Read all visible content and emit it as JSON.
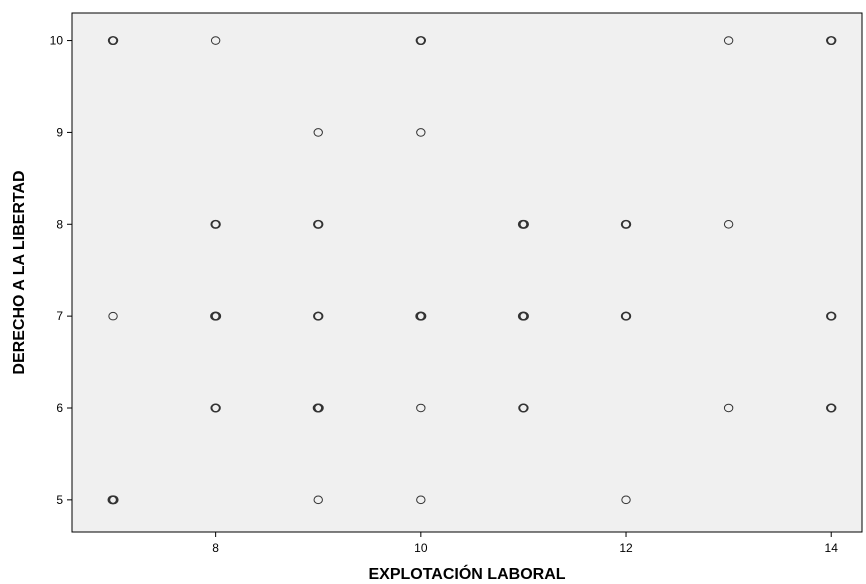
{
  "chart_data": {
    "type": "scatter",
    "title": "",
    "xlabel": "EXPLOTACIÓN LABORAL",
    "ylabel": "DERECHO A LA LIBERTAD",
    "xlim": [
      6.6,
      14.3
    ],
    "ylim": [
      4.65,
      10.3
    ],
    "xticks": [
      8,
      10,
      12,
      14
    ],
    "yticks": [
      5,
      6,
      7,
      8,
      9,
      10
    ],
    "grid": false,
    "legend": "none",
    "colors": {
      "plot_background": "#f0f0f0",
      "marker_stroke": "#333333"
    },
    "points": [
      {
        "x": 7,
        "y": 10,
        "count": 2
      },
      {
        "x": 8,
        "y": 10,
        "count": 1
      },
      {
        "x": 10,
        "y": 10,
        "count": 2
      },
      {
        "x": 13,
        "y": 10,
        "count": 1
      },
      {
        "x": 14,
        "y": 10,
        "count": 2
      },
      {
        "x": 9,
        "y": 9,
        "count": 1
      },
      {
        "x": 10,
        "y": 9,
        "count": 1
      },
      {
        "x": 8,
        "y": 8,
        "count": 2
      },
      {
        "x": 9,
        "y": 8,
        "count": 2
      },
      {
        "x": 11,
        "y": 8,
        "count": 3
      },
      {
        "x": 12,
        "y": 8,
        "count": 2
      },
      {
        "x": 13,
        "y": 8,
        "count": 1
      },
      {
        "x": 7,
        "y": 7,
        "count": 1
      },
      {
        "x": 8,
        "y": 7,
        "count": 3
      },
      {
        "x": 9,
        "y": 7,
        "count": 2
      },
      {
        "x": 10,
        "y": 7,
        "count": 3
      },
      {
        "x": 11,
        "y": 7,
        "count": 3
      },
      {
        "x": 12,
        "y": 7,
        "count": 2
      },
      {
        "x": 14,
        "y": 7,
        "count": 2
      },
      {
        "x": 8,
        "y": 6,
        "count": 2
      },
      {
        "x": 9,
        "y": 6,
        "count": 3
      },
      {
        "x": 10,
        "y": 6,
        "count": 1
      },
      {
        "x": 11,
        "y": 6,
        "count": 2
      },
      {
        "x": 13,
        "y": 6,
        "count": 1
      },
      {
        "x": 14,
        "y": 6,
        "count": 2
      },
      {
        "x": 7,
        "y": 5,
        "count": 3
      },
      {
        "x": 9,
        "y": 5,
        "count": 1
      },
      {
        "x": 10,
        "y": 5,
        "count": 1
      },
      {
        "x": 12,
        "y": 5,
        "count": 1
      }
    ]
  }
}
